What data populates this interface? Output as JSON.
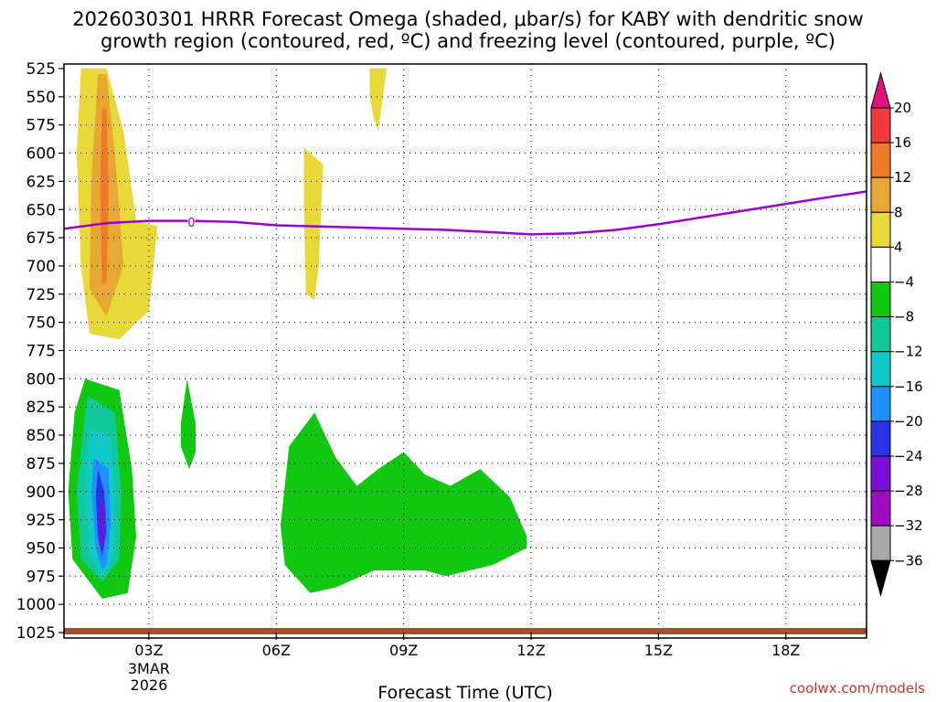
{
  "title_line1": "2026030301 HRRR Forecast Omega (shaded, μbar/s) for KABY with dendritic snow",
  "title_line2": "growth region (contoured, red, ºC) and freezing level (contoured, purple, ºC)",
  "credit": "coolwx.com/models",
  "colors": {
    "freezing_line": "#9b00d4",
    "ground": "#a0522d"
  },
  "chart_data": {
    "type": "heatmap",
    "xlabel": "Forecast Time (UTC)",
    "ylabel": "",
    "x_range_hours": [
      0,
      18.9
    ],
    "y_range_hPa": [
      525,
      1025
    ],
    "y_reversed": true,
    "grid": true,
    "y_ticks": [
      525,
      550,
      575,
      600,
      625,
      650,
      675,
      700,
      725,
      750,
      775,
      800,
      825,
      850,
      875,
      900,
      925,
      950,
      975,
      1000,
      1025
    ],
    "x_ticks": [
      {
        "hour": 2,
        "label": "03Z",
        "sub1": "3MAR",
        "sub2": "2026"
      },
      {
        "hour": 5,
        "label": "06Z"
      },
      {
        "hour": 8,
        "label": "09Z"
      },
      {
        "hour": 11,
        "label": "12Z"
      },
      {
        "hour": 14,
        "label": "15Z"
      },
      {
        "hour": 17,
        "label": "18Z"
      }
    ],
    "colorbar": {
      "labels": [
        "20",
        "16",
        "12",
        "8",
        "4",
        "−4",
        "−8",
        "−12",
        "−16",
        "−20",
        "−24",
        "−28",
        "−32",
        "−36"
      ],
      "colors": [
        "#e0137a",
        "#f03c3c",
        "#f07a2a",
        "#e6a833",
        "#e8d838",
        "#ffffff",
        "#10c810",
        "#10c89a",
        "#10c8c8",
        "#1e90ff",
        "#2a36e6",
        "#7a10d8",
        "#a00ac0",
        "#a8a8a8",
        "#000000"
      ]
    },
    "freezing_level": {
      "label": "0",
      "label_at": {
        "hour": 3,
        "hPa": 661
      },
      "points": [
        [
          0,
          667
        ],
        [
          1,
          662
        ],
        [
          2,
          660
        ],
        [
          3,
          660
        ],
        [
          4,
          661
        ],
        [
          5,
          664
        ],
        [
          6,
          665
        ],
        [
          7,
          666
        ],
        [
          8,
          667
        ],
        [
          9,
          668
        ],
        [
          10,
          670
        ],
        [
          11,
          672
        ],
        [
          12,
          671
        ],
        [
          13,
          668
        ],
        [
          14,
          663
        ],
        [
          15,
          657
        ],
        [
          16,
          651
        ],
        [
          17,
          645
        ],
        [
          18,
          639
        ],
        [
          18.9,
          634
        ]
      ]
    },
    "omega_regions": [
      {
        "value_band": "4 to 8",
        "color": "#e8d838",
        "points": [
          [
            0.4,
            525
          ],
          [
            1.0,
            525
          ],
          [
            1.4,
            580
          ],
          [
            1.7,
            660
          ],
          [
            2.2,
            665
          ],
          [
            2.0,
            740
          ],
          [
            1.3,
            765
          ],
          [
            0.6,
            760
          ],
          [
            0.4,
            700
          ],
          [
            0.3,
            600
          ]
        ]
      },
      {
        "value_band": "8 to 12",
        "color": "#e6a833",
        "points": [
          [
            0.8,
            530
          ],
          [
            1.0,
            530
          ],
          [
            1.2,
            600
          ],
          [
            1.4,
            700
          ],
          [
            1.0,
            745
          ],
          [
            0.6,
            720
          ],
          [
            0.65,
            620
          ]
        ]
      },
      {
        "value_band": "12 to 16",
        "color": "#f07a2a",
        "points": [
          [
            0.9,
            560
          ],
          [
            1.0,
            560
          ],
          [
            1.05,
            630
          ],
          [
            1.0,
            715
          ],
          [
            0.9,
            715
          ],
          [
            0.85,
            630
          ]
        ]
      },
      {
        "value_band": "4 to 8",
        "color": "#e8d838",
        "points": [
          [
            5.65,
            595
          ],
          [
            6.1,
            610
          ],
          [
            6.0,
            700
          ],
          [
            5.9,
            730
          ],
          [
            5.7,
            725
          ],
          [
            5.65,
            650
          ]
        ]
      },
      {
        "value_band": "4 to 8",
        "color": "#e8d838",
        "points": [
          [
            7.2,
            525
          ],
          [
            7.6,
            525
          ],
          [
            7.4,
            580
          ],
          [
            7.3,
            570
          ],
          [
            7.2,
            550
          ]
        ]
      },
      {
        "value_band": "-8 to -4",
        "color": "#10c810",
        "points": [
          [
            0.5,
            800
          ],
          [
            1.3,
            810
          ],
          [
            1.6,
            880
          ],
          [
            1.7,
            940
          ],
          [
            1.5,
            990
          ],
          [
            0.9,
            995
          ],
          [
            0.2,
            960
          ],
          [
            0.1,
            900
          ],
          [
            0.25,
            830
          ]
        ]
      },
      {
        "value_band": "-12 to -8",
        "color": "#10c89a",
        "points": [
          [
            0.55,
            815
          ],
          [
            1.2,
            830
          ],
          [
            1.35,
            900
          ],
          [
            1.3,
            960
          ],
          [
            0.9,
            980
          ],
          [
            0.4,
            960
          ],
          [
            0.3,
            900
          ]
        ]
      },
      {
        "value_band": "-16 to -12",
        "color": "#10c8c8",
        "points": [
          [
            0.6,
            845
          ],
          [
            1.1,
            850
          ],
          [
            1.2,
            910
          ],
          [
            1.15,
            960
          ],
          [
            0.9,
            975
          ],
          [
            0.6,
            955
          ],
          [
            0.5,
            900
          ]
        ]
      },
      {
        "value_band": "-20 to -16",
        "color": "#1e90ff",
        "points": [
          [
            0.7,
            870
          ],
          [
            1.05,
            880
          ],
          [
            1.1,
            930
          ],
          [
            1.0,
            965
          ],
          [
            0.9,
            970
          ],
          [
            0.75,
            950
          ],
          [
            0.65,
            900
          ]
        ]
      },
      {
        "value_band": "-24 to -20",
        "color": "#2a36e6",
        "points": [
          [
            0.8,
            880
          ],
          [
            0.95,
            900
          ],
          [
            1.0,
            935
          ],
          [
            0.9,
            958
          ],
          [
            0.8,
            940
          ],
          [
            0.75,
            905
          ]
        ]
      },
      {
        "value_band": "-28 to -24",
        "color": "#7a10d8",
        "points": [
          [
            0.88,
            905
          ],
          [
            0.95,
            920
          ],
          [
            0.95,
            945
          ],
          [
            0.88,
            950
          ],
          [
            0.82,
            930
          ]
        ]
      },
      {
        "value_band": "-8 to -4",
        "color": "#10c810",
        "points": [
          [
            2.9,
            800
          ],
          [
            3.1,
            840
          ],
          [
            3.1,
            865
          ],
          [
            2.95,
            880
          ],
          [
            2.75,
            860
          ],
          [
            2.75,
            840
          ]
        ]
      },
      {
        "value_band": "-8 to -4",
        "color": "#10c810",
        "points": [
          [
            5.3,
            860
          ],
          [
            5.9,
            830
          ],
          [
            6.4,
            870
          ],
          [
            6.9,
            895
          ],
          [
            7.4,
            880
          ],
          [
            8.0,
            865
          ],
          [
            8.5,
            885
          ],
          [
            9.1,
            895
          ],
          [
            9.8,
            880
          ],
          [
            10.5,
            905
          ],
          [
            10.9,
            940
          ],
          [
            10.9,
            950
          ],
          [
            10.1,
            965
          ],
          [
            9.0,
            975
          ],
          [
            8.5,
            970
          ],
          [
            7.3,
            970
          ],
          [
            6.4,
            985
          ],
          [
            5.8,
            990
          ],
          [
            5.2,
            965
          ],
          [
            5.1,
            930
          ]
        ]
      }
    ]
  }
}
